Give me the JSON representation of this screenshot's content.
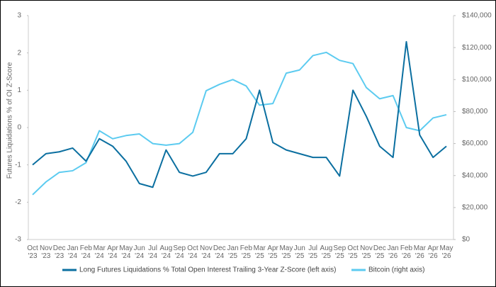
{
  "chart_data": {
    "type": "line",
    "y_label": "Futures Liquidations % of OI Z-Score",
    "categories": [
      "Oct '23",
      "Nov '23",
      "Dec '23",
      "Jan '24",
      "Feb '24",
      "Mar '24",
      "Apr '24",
      "May '24",
      "Jun '24",
      "Jul '24",
      "Aug '24",
      "Sep '24",
      "Oct '24",
      "Nov '24",
      "Dec '24",
      "Jan '25",
      "Feb '25",
      "Mar '25",
      "Apr '25",
      "May '25",
      "Jun '25",
      "Jul '25",
      "Aug '25",
      "Sep '25",
      "Oct '25",
      "Nov '25",
      "Dec '25",
      "Jan '26",
      "Feb '26",
      "Mar '26",
      "Apr '26",
      "May '26"
    ],
    "series": [
      {
        "name": "Long Futures Liquidations % Total Open Interest Trailing 3-Year Z-Score (left axis)",
        "color": "#0b6fa0",
        "axis": "y",
        "values": [
          -1.0,
          -0.7,
          -0.65,
          -0.55,
          -0.9,
          -0.3,
          -0.5,
          -0.9,
          -1.5,
          -1.6,
          -0.6,
          -1.2,
          -1.3,
          -1.2,
          -0.7,
          -0.7,
          -0.3,
          1.0,
          -0.4,
          -0.6,
          -0.7,
          -0.8,
          -0.8,
          -1.3,
          1.0,
          0.3,
          -0.5,
          -0.8,
          2.3,
          -0.2,
          -0.8,
          -0.5
        ]
      },
      {
        "name": "Bitcoin (right axis)",
        "color": "#5ccbf0",
        "axis": "y2",
        "values": [
          28000,
          36000,
          42000,
          43000,
          48000,
          68000,
          63000,
          65000,
          66000,
          60000,
          59000,
          60000,
          67000,
          93000,
          97000,
          100000,
          96000,
          84000,
          85000,
          104000,
          106000,
          115000,
          117000,
          112000,
          110000,
          95000,
          88000,
          90000,
          70000,
          68000,
          76000,
          78000
        ]
      }
    ],
    "ylim": [
      -3,
      3
    ],
    "yticks": [
      -3,
      -2,
      -1,
      0,
      1,
      2,
      3
    ],
    "y2lim": [
      0,
      140000
    ],
    "y2ticks": [
      {
        "value": 0,
        "label": "$0"
      },
      {
        "value": 20000,
        "label": "$20,000"
      },
      {
        "value": 40000,
        "label": "$40,000"
      },
      {
        "value": 60000,
        "label": "$60,000"
      },
      {
        "value": 80000,
        "label": "$80,000"
      },
      {
        "value": 100000,
        "label": "$100,000"
      },
      {
        "value": 120000,
        "label": "$120,000"
      },
      {
        "value": 140000,
        "label": "$140,000"
      }
    ]
  }
}
